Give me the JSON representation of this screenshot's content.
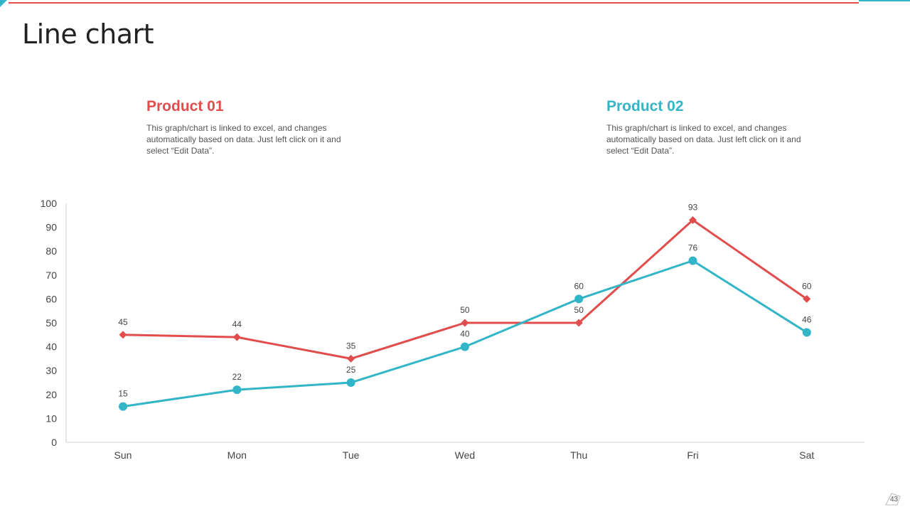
{
  "page": {
    "title": "Line chart",
    "page_number": "43"
  },
  "legend": [
    {
      "title": "Product 01",
      "color": "#e14d4d",
      "description": "This graph/chart is linked to excel, and changes automatically based on data. Just left click on it and select “Edit Data”."
    },
    {
      "title": "Product 02",
      "color": "#32b5c7",
      "description": "This graph/chart is linked to excel, and changes automatically based on data. Just left click on it and select “Edit Data”."
    }
  ],
  "chart_data": {
    "type": "line",
    "title": "Line chart",
    "categories": [
      "Sun",
      "Mon",
      "Tue",
      "Wed",
      "Thu",
      "Fri",
      "Sat"
    ],
    "ylim": [
      0,
      100
    ],
    "yticks": [
      0,
      10,
      20,
      30,
      40,
      50,
      60,
      70,
      80,
      90,
      100
    ],
    "xlabel": "",
    "ylabel": "",
    "grid": false,
    "series": [
      {
        "name": "Product 01",
        "color": "#e14d4d",
        "marker": "diamond",
        "values": [
          45,
          44,
          35,
          50,
          50,
          93,
          60
        ]
      },
      {
        "name": "Product 02",
        "color": "#32b5c7",
        "marker": "circle",
        "values": [
          15,
          22,
          25,
          40,
          60,
          76,
          46
        ]
      }
    ]
  }
}
